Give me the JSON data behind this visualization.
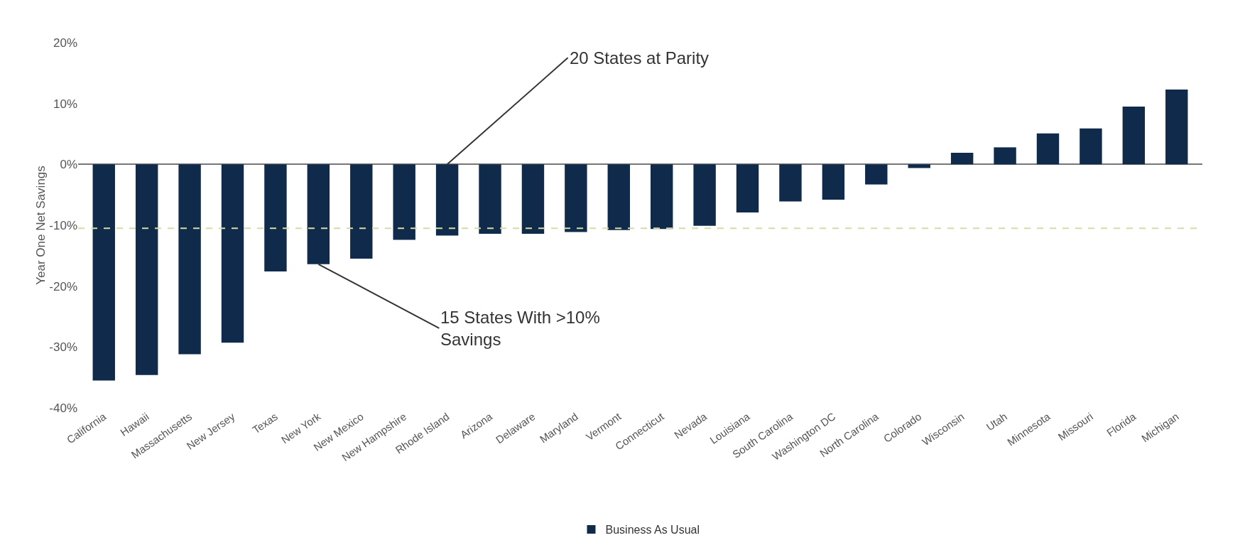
{
  "chart_data": {
    "type": "bar",
    "ylabel": "Year One Net Savings",
    "categories": [
      "California",
      "Hawaii",
      "Massachusetts",
      "New Jersey",
      "Texas",
      "New York",
      "New Mexico",
      "New Hampshire",
      "Rhode Island",
      "Arizona",
      "Delaware",
      "Maryland",
      "Vermont",
      "Connecticut",
      "Nevada",
      "Louisiana",
      "South Carolina",
      "Washington DC",
      "North Carolina",
      "Colorado",
      "Wisconsin",
      "Utah",
      "Minnesota",
      "Missouri",
      "Florida",
      "Michigan"
    ],
    "series": [
      {
        "name": "Business As Usual",
        "color": "#0f2a4a",
        "values": [
          -35.5,
          -34.6,
          -31.2,
          -29.3,
          -17.6,
          -16.4,
          -15.5,
          -12.4,
          -11.7,
          -11.4,
          -11.4,
          -11.1,
          -10.8,
          -10.6,
          -10.1,
          -7.9,
          -6.1,
          -5.8,
          -3.3,
          -0.6,
          1.9,
          2.8,
          5.1,
          5.9,
          9.5,
          12.3
        ]
      }
    ],
    "ylim": [
      -40,
      20
    ],
    "yticks": [
      {
        "value": -40,
        "label": "-40%"
      },
      {
        "value": -30,
        "label": "-30%"
      },
      {
        "value": -20,
        "label": "-20%"
      },
      {
        "value": -10,
        "label": "-10%"
      },
      {
        "value": 0,
        "label": "0%"
      },
      {
        "value": 10,
        "label": "10%"
      },
      {
        "value": 20,
        "label": "20%"
      }
    ],
    "ref_lines": [
      {
        "axis": "y",
        "value": -10.5,
        "color": "#d6dca6",
        "line_style": "dashed"
      }
    ],
    "annotations": [
      {
        "text": "20 States at Parity",
        "x": "Rhode Island",
        "y": 0
      },
      {
        "text": "15 States With >10%\nSavings",
        "x": "New York",
        "y": -16.4
      }
    ],
    "grid": false,
    "legend": "bottom"
  }
}
